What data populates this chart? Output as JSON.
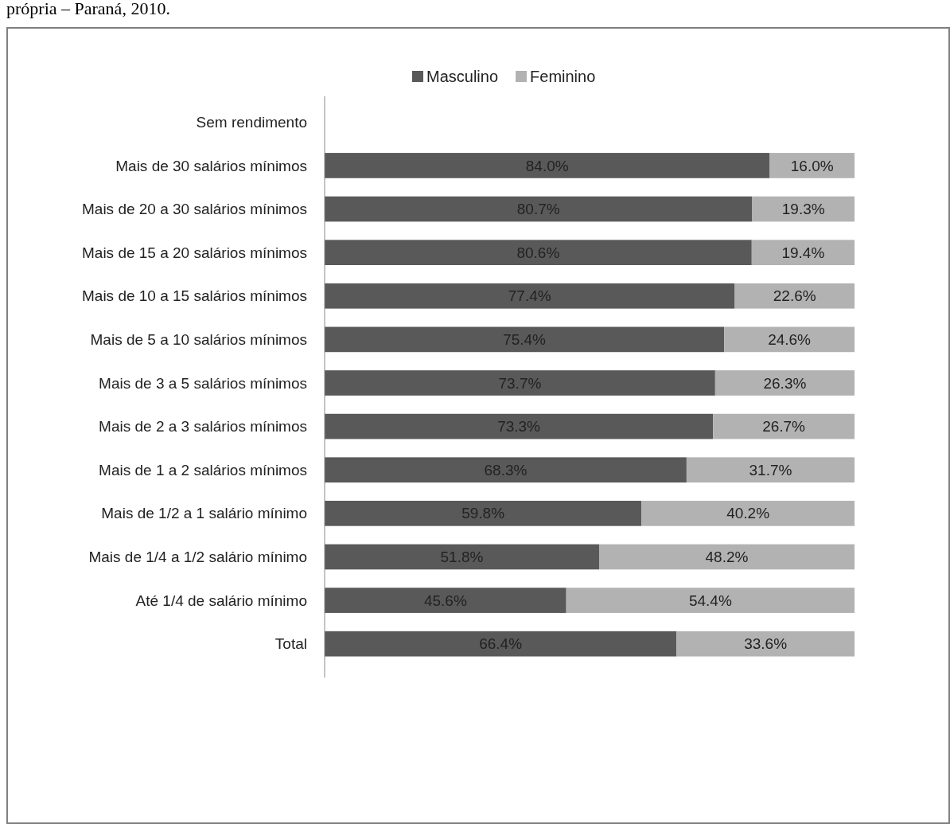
{
  "chart_data": {
    "type": "bar",
    "orientation": "horizontal",
    "stacked": true,
    "categories": [
      "Sem rendimento",
      "Mais de 30 salários mínimos",
      "Mais de 20 a 30 salários mínimos",
      "Mais de 15 a 20 salários mínimos",
      "Mais de 10 a 15 salários mínimos",
      "Mais de 5 a 10 salários mínimos",
      "Mais de 3 a 5 salários mínimos",
      "Mais de 2 a 3 salários mínimos",
      "Mais de 1 a 2 salários mínimos",
      "Mais de 1/2 a 1 salário mínimo",
      "Mais de 1/4 a 1/2 salário mínimo",
      "Até 1/4 de salário mínimo",
      "Total"
    ],
    "series": [
      {
        "name": "Masculino",
        "color": "#595959",
        "values": [
          null,
          84.0,
          80.7,
          80.6,
          77.4,
          75.4,
          73.7,
          73.3,
          68.3,
          59.8,
          51.8,
          45.6,
          66.4
        ],
        "value_labels": [
          null,
          "84.0%",
          "80.7%",
          "80.6%",
          "77.4%",
          "75.4%",
          "73.7%",
          "73.3%",
          "68.3%",
          "59.8%",
          "51.8%",
          "45.6%",
          "66.4%"
        ]
      },
      {
        "name": "Feminino",
        "color": "#b2b2b2",
        "values": [
          null,
          16.0,
          19.3,
          19.4,
          22.6,
          24.6,
          26.3,
          26.7,
          31.7,
          40.2,
          48.2,
          54.4,
          33.6
        ],
        "value_labels": [
          null,
          "16.0%",
          "19.3%",
          "19.4%",
          "22.6%",
          "24.6%",
          "26.3%",
          "26.7%",
          "31.7%",
          "40.2%",
          "48.2%",
          "54.4%",
          "33.6%"
        ]
      }
    ],
    "xlim": [
      0,
      100
    ],
    "tick_labels": "y",
    "legend": "top",
    "annotations": [
      "própria – Paraná, 2010."
    ]
  }
}
